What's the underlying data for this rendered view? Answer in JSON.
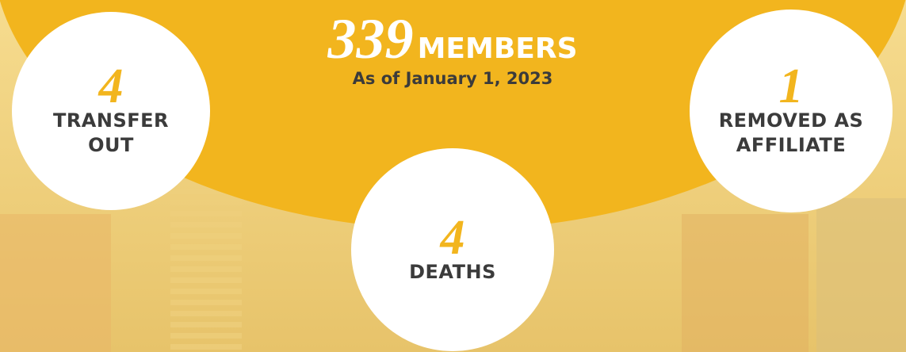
{
  "headline": {
    "number": 339,
    "label": "MEMBERS",
    "date": "As of January 1, 2023"
  },
  "stats": [
    {
      "number": 4,
      "label_lines": [
        "TRANSFER",
        "OUT"
      ]
    },
    {
      "number": 1,
      "label_lines": [
        "REMOVED AS",
        "AFFILIATE"
      ]
    },
    {
      "number": 4,
      "label_lines": [
        "DEATHS"
      ]
    }
  ]
}
